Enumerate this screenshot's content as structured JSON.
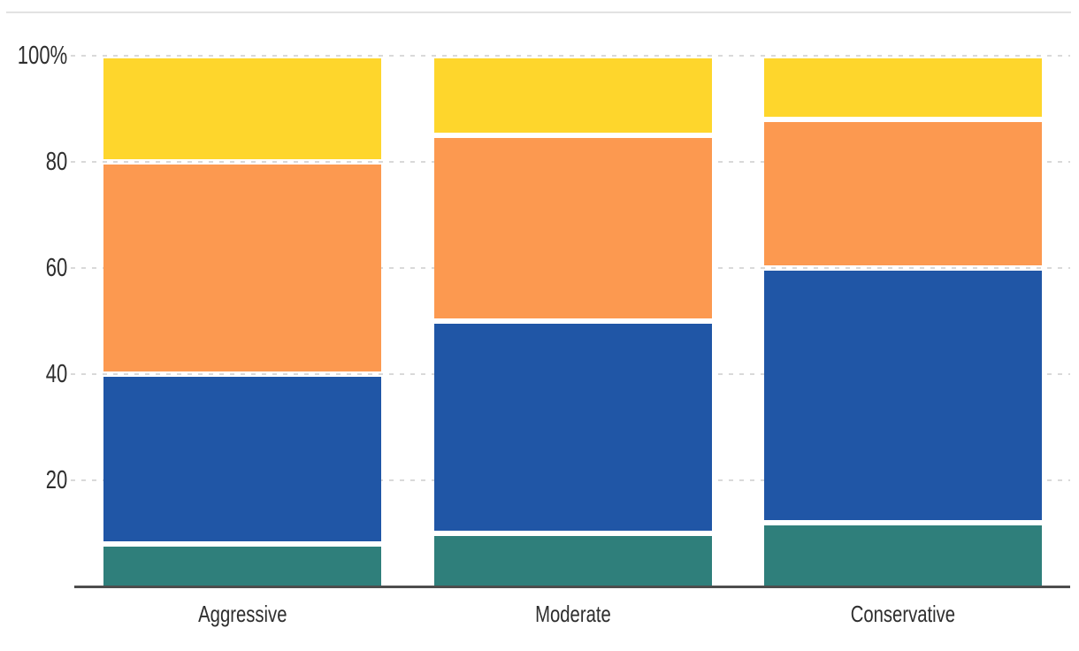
{
  "chart_data": {
    "type": "bar",
    "stacked": true,
    "orientation": "vertical",
    "title": "",
    "xlabel": "",
    "ylabel": "",
    "categories": [
      "Aggressive",
      "Moderate",
      "Conservative"
    ],
    "series": [
      {
        "name": "teal-segment",
        "color": "#2f7f7b",
        "values": [
          8,
          10,
          12
        ]
      },
      {
        "name": "blue-segment",
        "color": "#2056a6",
        "values": [
          32,
          40,
          48
        ]
      },
      {
        "name": "orange-segment",
        "color": "#fc9950",
        "values": [
          40,
          35,
          28
        ]
      },
      {
        "name": "yellow-segment",
        "color": "#fed62c",
        "values": [
          20,
          15,
          12
        ]
      }
    ],
    "ylim": [
      0,
      100
    ],
    "y_ticks": [
      {
        "label": "20",
        "value": 20
      },
      {
        "label": "40",
        "value": 40
      },
      {
        "label": "60",
        "value": 60
      },
      {
        "label": "80",
        "value": 80
      },
      {
        "label": "100%",
        "value": 100
      }
    ],
    "grid": "dashed-horizontal",
    "legend": "none",
    "colors": {
      "gridline": "#d9d9d9",
      "axis_line": "#4d4d4d",
      "top_divider": "#e2e2e2",
      "label_text": "#2e2e2e",
      "background": "#ffffff"
    }
  }
}
